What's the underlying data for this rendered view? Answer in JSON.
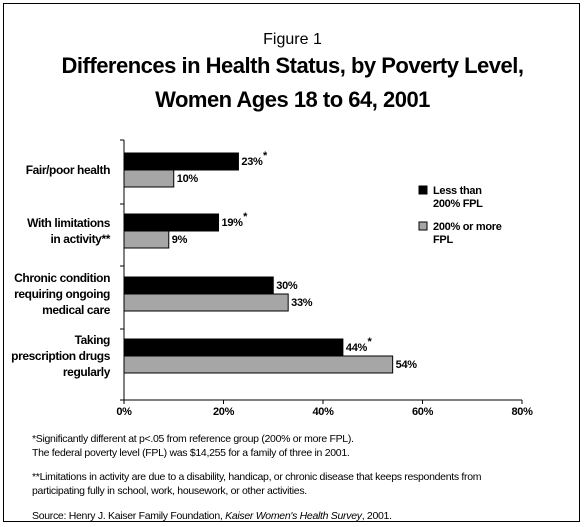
{
  "figure_label": "Figure 1",
  "title_line1": "Differences in Health Status, by Poverty Level,",
  "title_line2": "Women Ages 18 to 64, 2001",
  "chart_data": {
    "type": "bar",
    "orientation": "horizontal",
    "categories": [
      [
        "Fair/poor health"
      ],
      [
        "With limitations",
        "in activity**"
      ],
      [
        "Chronic condition",
        "requiring ongoing",
        "medical care"
      ],
      [
        "Taking",
        "prescription drugs",
        "regularly"
      ]
    ],
    "series": [
      {
        "name": [
          "Less than",
          "200% FPL"
        ],
        "color": "#000000",
        "values": [
          23,
          19,
          30,
          44
        ],
        "labels": [
          "23%",
          "19%",
          "30%",
          "44%"
        ],
        "marks": [
          "*",
          "*",
          "",
          "*"
        ]
      },
      {
        "name": [
          "200% or more",
          "FPL"
        ],
        "color": "#a6a6a6",
        "values": [
          10,
          9,
          33,
          54
        ],
        "labels": [
          "10%",
          "9%",
          "33%",
          "54%"
        ],
        "marks": [
          "",
          "",
          "",
          ""
        ]
      }
    ],
    "xlim": [
      0,
      80
    ],
    "xticks": [
      0,
      20,
      40,
      60,
      80
    ],
    "xtick_labels": [
      "0%",
      "20%",
      "40%",
      "60%",
      "80%"
    ],
    "grid": false,
    "legend_position": "right"
  },
  "footnotes": {
    "note1": "*Significantly different at p<.05 from reference group (200% or more FPL).",
    "note2": "The federal poverty level (FPL) was $14,255 for a family of three in 2001.",
    "note3": "**Limitations in activity are due to a disability, handicap, or chronic disease that keeps respondents from",
    "note4": "participating fully in school, work, housework, or other activities.",
    "source_prefix": "Source: Henry J. Kaiser Family Foundation, ",
    "source_title": "Kaiser Women's Health Survey",
    "source_suffix": ", 2001."
  }
}
